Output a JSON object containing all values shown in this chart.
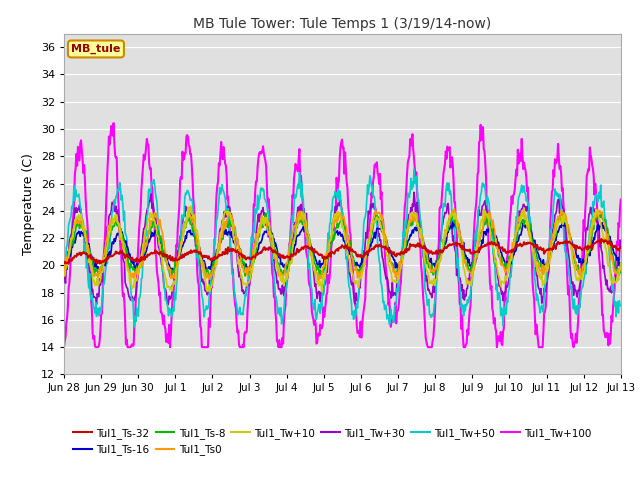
{
  "title": "MB Tule Tower: Tule Temps 1 (3/19/14-now)",
  "ylabel": "Temperature (C)",
  "ylim": [
    12,
    37
  ],
  "yticks": [
    12,
    14,
    16,
    18,
    20,
    22,
    24,
    26,
    28,
    30,
    32,
    34,
    36
  ],
  "xlabel_ticks": [
    "Jun 28",
    "Jun 29",
    "Jun 30",
    "Jul 1",
    "Jul 2",
    "Jul 3",
    "Jul 4",
    "Jul 5",
    "Jul 6",
    "Jul 7",
    "Jul 8",
    "Jul 9",
    "Jul 10",
    "Jul 11",
    "Jul 12",
    "Jul 13"
  ],
  "n_days": 15,
  "background_color": "#ffffff",
  "plot_bg_color": "#e0e0e0",
  "grid_color": "#ffffff",
  "series": {
    "Tul1_Ts-32": {
      "color": "#cc0000",
      "lw": 1.5,
      "zorder": 5
    },
    "Tul1_Ts-16": {
      "color": "#0000cc",
      "lw": 1.2,
      "zorder": 4
    },
    "Tul1_Ts-8": {
      "color": "#00bb00",
      "lw": 1.2,
      "zorder": 4
    },
    "Tul1_Ts0": {
      "color": "#ff9900",
      "lw": 1.2,
      "zorder": 4
    },
    "Tul1_Tw+10": {
      "color": "#cccc00",
      "lw": 1.2,
      "zorder": 4
    },
    "Tul1_Tw+30": {
      "color": "#9900cc",
      "lw": 1.2,
      "zorder": 3
    },
    "Tul1_Tw+50": {
      "color": "#00cccc",
      "lw": 1.2,
      "zorder": 3
    },
    "Tul1_Tw+100": {
      "color": "#ff00ff",
      "lw": 1.5,
      "zorder": 2
    }
  },
  "legend_box": {
    "label": "MB_tule",
    "bg": "#ffff99",
    "edge": "#cc8800"
  },
  "figsize": [
    6.4,
    4.8
  ],
  "dpi": 100
}
